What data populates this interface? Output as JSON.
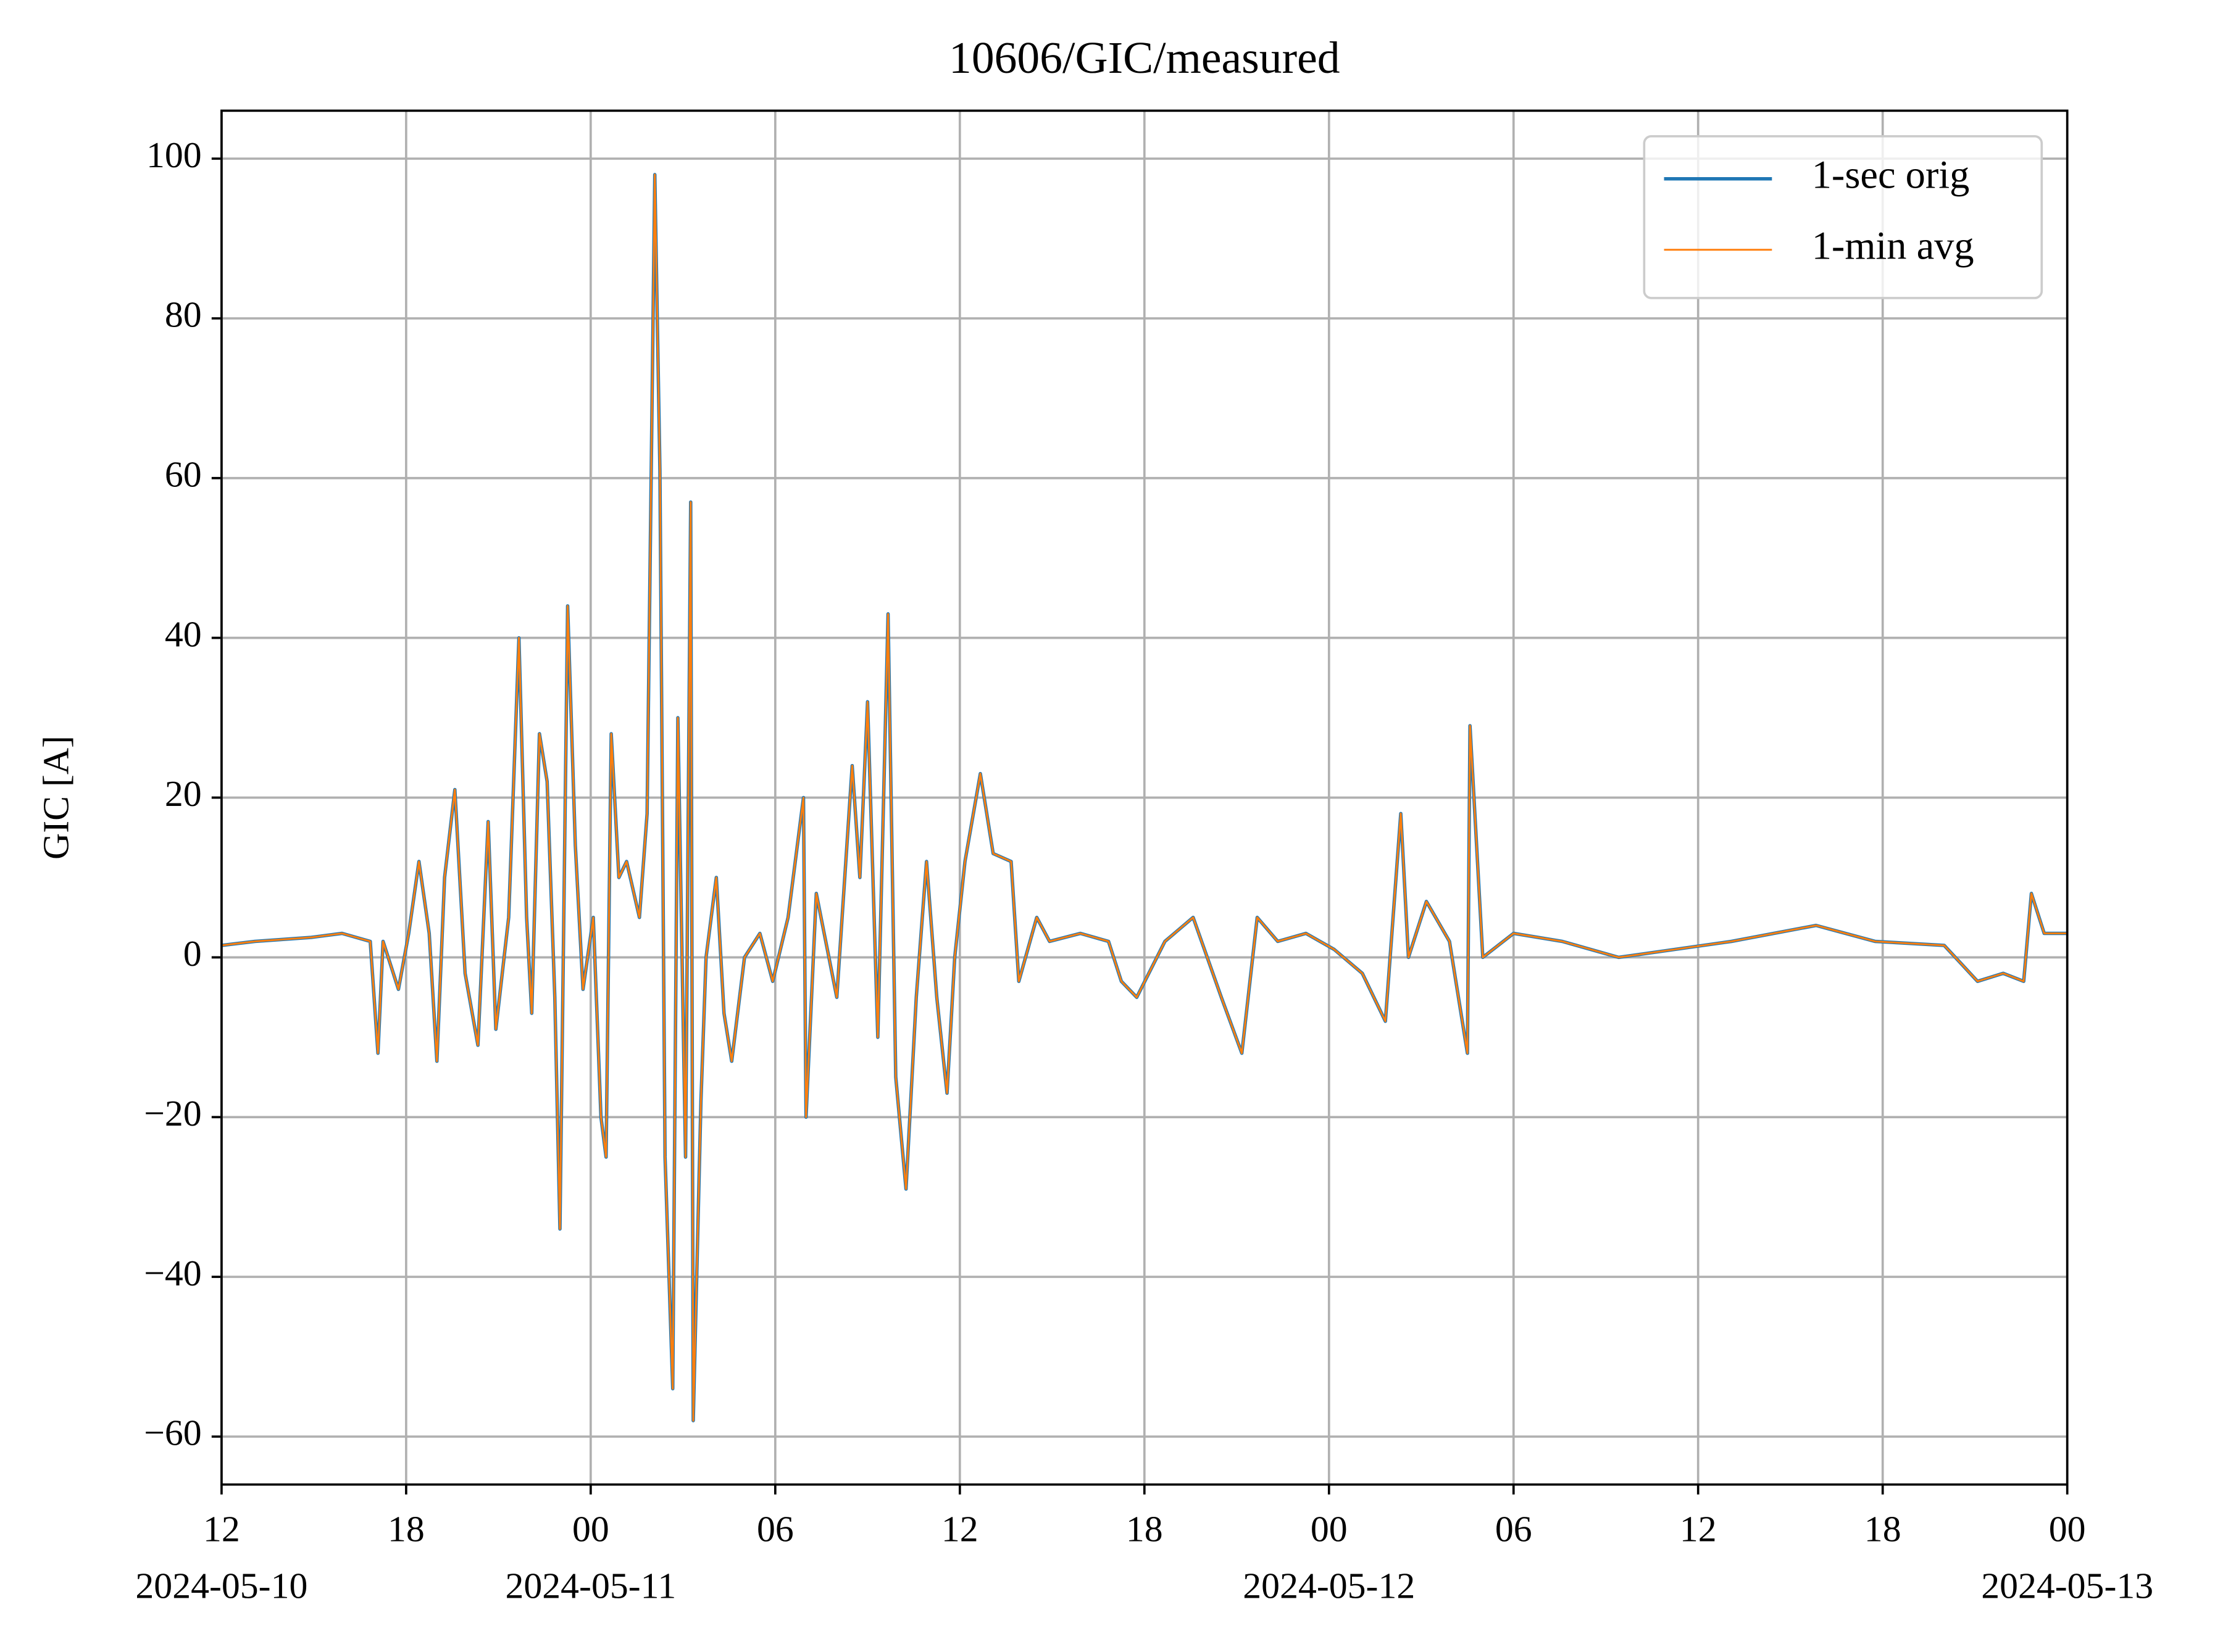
{
  "chart_data": {
    "type": "line",
    "title": "10606/GIC/measured",
    "y_label": "GIC [A]",
    "x": [
      "2024-05-10 12:00",
      "2024-05-10 13:05",
      "2024-05-10 14:55",
      "2024-05-10 15:55",
      "2024-05-10 16:50",
      "2024-05-10 17:05",
      "2024-05-10 17:15",
      "2024-05-10 17:45",
      "2024-05-10 18:05",
      "2024-05-10 18:25",
      "2024-05-10 18:45",
      "2024-05-10 19:00",
      "2024-05-10 19:15",
      "2024-05-10 19:35",
      "2024-05-10 19:55",
      "2024-05-10 20:20",
      "2024-05-10 20:40",
      "2024-05-10 20:55",
      "2024-05-10 21:20",
      "2024-05-10 21:40",
      "2024-05-10 21:55",
      "2024-05-10 22:05",
      "2024-05-10 22:20",
      "2024-05-10 22:35",
      "2024-05-10 22:50",
      "2024-05-10 23:00",
      "2024-05-10 23:15",
      "2024-05-10 23:30",
      "2024-05-10 23:45",
      "2024-05-11 00:05",
      "2024-05-11 00:20",
      "2024-05-11 00:30",
      "2024-05-11 00:40",
      "2024-05-11 00:55",
      "2024-05-11 01:10",
      "2024-05-11 01:35",
      "2024-05-11 01:50",
      "2024-05-11 02:05",
      "2024-05-11 02:15",
      "2024-05-11 02:25",
      "2024-05-11 02:40",
      "2024-05-11 02:50",
      "2024-05-11 03:05",
      "2024-05-11 03:15",
      "2024-05-11 03:20",
      "2024-05-11 03:35",
      "2024-05-11 03:45",
      "2024-05-11 04:05",
      "2024-05-11 04:20",
      "2024-05-11 04:35",
      "2024-05-11 05:00",
      "2024-05-11 05:30",
      "2024-05-11 05:55",
      "2024-05-11 06:25",
      "2024-05-11 06:55",
      "2024-05-11 07:00",
      "2024-05-11 07:20",
      "2024-05-11 08:00",
      "2024-05-11 08:30",
      "2024-05-11 08:45",
      "2024-05-11 09:00",
      "2024-05-11 09:20",
      "2024-05-11 09:40",
      "2024-05-11 09:55",
      "2024-05-11 10:15",
      "2024-05-11 10:35",
      "2024-05-11 10:55",
      "2024-05-11 11:15",
      "2024-05-11 11:35",
      "2024-05-11 11:50",
      "2024-05-11 12:10",
      "2024-05-11 12:40",
      "2024-05-11 13:05",
      "2024-05-11 13:40",
      "2024-05-11 13:55",
      "2024-05-11 14:30",
      "2024-05-11 14:55",
      "2024-05-11 15:55",
      "2024-05-11 16:50",
      "2024-05-11 17:15",
      "2024-05-11 17:45",
      "2024-05-11 18:40",
      "2024-05-11 19:35",
      "2024-05-11 20:30",
      "2024-05-11 21:10",
      "2024-05-11 21:40",
      "2024-05-11 22:20",
      "2024-05-11 23:15",
      "2024-05-12 00:10",
      "2024-05-12 01:05",
      "2024-05-12 01:50",
      "2024-05-12 02:20",
      "2024-05-12 02:35",
      "2024-05-12 03:10",
      "2024-05-12 03:55",
      "2024-05-12 04:30",
      "2024-05-12 04:35",
      "2024-05-12 05:00",
      "2024-05-12 06:00",
      "2024-05-12 07:35",
      "2024-05-12 09:25",
      "2024-05-12 11:15",
      "2024-05-12 13:05",
      "2024-05-12 15:50",
      "2024-05-12 17:45",
      "2024-05-12 20:00",
      "2024-05-12 21:05",
      "2024-05-12 21:55",
      "2024-05-12 22:35",
      "2024-05-12 22:50",
      "2024-05-12 23:15",
      "2024-05-13 00:00"
    ],
    "series": [
      {
        "name": "1-sec orig",
        "color": "#1f77b4",
        "values": [
          1.5,
          2,
          2.5,
          3,
          2,
          -12,
          2,
          -4,
          3,
          12,
          3,
          -13,
          10,
          21,
          -2,
          -11,
          17,
          -9,
          5,
          40,
          5,
          -7,
          28,
          22,
          -5,
          -34,
          44,
          14,
          -4,
          5,
          -20,
          -25,
          28,
          10,
          12,
          5,
          18,
          98,
          61,
          -25,
          -54,
          30,
          -25,
          57,
          -58,
          -18,
          0,
          10,
          -7,
          -13,
          0,
          3,
          -3,
          5,
          20,
          -20,
          8,
          -5,
          24,
          10,
          32,
          -10,
          43,
          -15,
          -29,
          -5,
          12,
          -5,
          -17,
          0,
          12,
          23,
          13,
          12,
          -3,
          5,
          2,
          3,
          2,
          -3,
          -5,
          2,
          5,
          -5,
          -12,
          5,
          2,
          3,
          1,
          -2,
          -8,
          18,
          0,
          7,
          2,
          -12,
          29,
          0,
          3,
          2,
          0,
          1,
          2,
          4,
          2,
          1.5,
          -3,
          -2,
          -3,
          8,
          3,
          3
        ]
      },
      {
        "name": "1-min avg",
        "color": "#ff7f0e",
        "values": [
          1.5,
          2,
          2.5,
          3,
          2,
          -12,
          2,
          -4,
          3,
          12,
          3,
          -13,
          10,
          21,
          -2,
          -11,
          17,
          -9,
          5,
          40,
          5,
          -7,
          28,
          22,
          -5,
          -34,
          44,
          14,
          -4,
          5,
          -20,
          -25,
          28,
          10,
          12,
          5,
          18,
          98,
          61,
          -25,
          -54,
          30,
          -25,
          57,
          -58,
          -18,
          0,
          10,
          -7,
          -13,
          0,
          3,
          -3,
          5,
          20,
          -20,
          8,
          -5,
          24,
          10,
          32,
          -10,
          43,
          -15,
          -29,
          -5,
          12,
          -5,
          -17,
          0,
          12,
          23,
          13,
          12,
          -3,
          5,
          2,
          3,
          2,
          -3,
          -5,
          2,
          5,
          -5,
          -12,
          5,
          2,
          3,
          1,
          -2,
          -8,
          18,
          0,
          7,
          2,
          -12,
          29,
          0,
          3,
          2,
          0,
          1,
          2,
          4,
          2,
          1.5,
          -3,
          -2,
          -3,
          8,
          3,
          3
        ]
      }
    ],
    "xlim": [
      "2024-05-10 12:00",
      "2024-05-13 00:00"
    ],
    "xticks": [
      {
        "value": "2024-05-10 12:00",
        "label": [
          "12",
          "2024-05-10"
        ]
      },
      {
        "value": "2024-05-10 18:00",
        "label": [
          "18"
        ]
      },
      {
        "value": "2024-05-11 00:00",
        "label": [
          "00",
          "2024-05-11"
        ]
      },
      {
        "value": "2024-05-11 06:00",
        "label": [
          "06"
        ]
      },
      {
        "value": "2024-05-11 12:00",
        "label": [
          "12"
        ]
      },
      {
        "value": "2024-05-11 18:00",
        "label": [
          "18"
        ]
      },
      {
        "value": "2024-05-12 00:00",
        "label": [
          "00",
          "2024-05-12"
        ]
      },
      {
        "value": "2024-05-12 06:00",
        "label": [
          "06"
        ]
      },
      {
        "value": "2024-05-12 12:00",
        "label": [
          "12"
        ]
      },
      {
        "value": "2024-05-12 18:00",
        "label": [
          "18"
        ]
      },
      {
        "value": "2024-05-13 00:00",
        "label": [
          "00",
          "2024-05-13"
        ]
      }
    ],
    "ylim": [
      -66,
      106
    ],
    "yticks": [
      {
        "value": -60,
        "label": "−60"
      },
      {
        "value": -40,
        "label": "−40"
      },
      {
        "value": -20,
        "label": "−20"
      },
      0,
      20,
      40,
      60,
      80,
      100
    ],
    "grid": true,
    "legend": "upper right"
  }
}
